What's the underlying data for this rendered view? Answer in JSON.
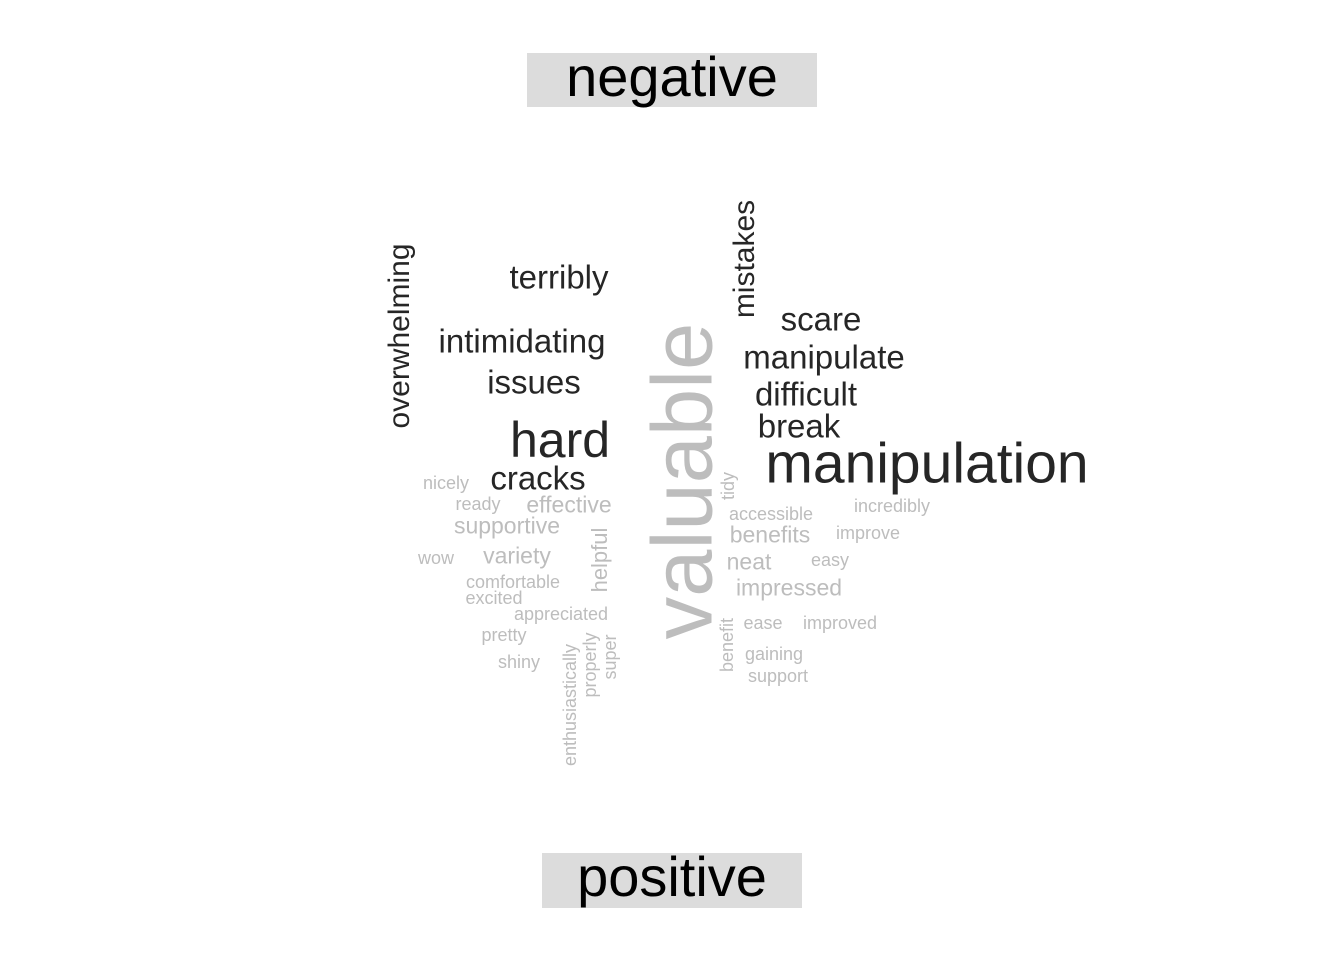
{
  "groups": {
    "negative_label": "negative",
    "positive_label": "positive"
  },
  "colors": {
    "negative": "#262626",
    "positive": "#bdbdbd",
    "label_background": "#dcdcdc"
  },
  "chart_data": {
    "type": "wordcloud",
    "title": "",
    "groups": [
      "negative",
      "positive"
    ],
    "words": [
      {
        "text": "manipulation",
        "sentiment": "negative",
        "weight": 10,
        "rotated": false
      },
      {
        "text": "hard",
        "sentiment": "negative",
        "weight": 9,
        "rotated": false
      },
      {
        "text": "overwhelming",
        "sentiment": "negative",
        "weight": 6,
        "rotated": true
      },
      {
        "text": "mistakes",
        "sentiment": "negative",
        "weight": 6,
        "rotated": true
      },
      {
        "text": "intimidating",
        "sentiment": "negative",
        "weight": 6,
        "rotated": false
      },
      {
        "text": "terribly",
        "sentiment": "negative",
        "weight": 6,
        "rotated": false
      },
      {
        "text": "manipulate",
        "sentiment": "negative",
        "weight": 6,
        "rotated": false
      },
      {
        "text": "difficult",
        "sentiment": "negative",
        "weight": 6,
        "rotated": false
      },
      {
        "text": "break",
        "sentiment": "negative",
        "weight": 6,
        "rotated": false
      },
      {
        "text": "issues",
        "sentiment": "negative",
        "weight": 6,
        "rotated": false
      },
      {
        "text": "cracks",
        "sentiment": "negative",
        "weight": 6,
        "rotated": false
      },
      {
        "text": "scare",
        "sentiment": "negative",
        "weight": 6,
        "rotated": false
      },
      {
        "text": "valuable",
        "sentiment": "positive",
        "weight": 20,
        "rotated": true
      },
      {
        "text": "helpful",
        "sentiment": "positive",
        "weight": 3,
        "rotated": true
      },
      {
        "text": "effective",
        "sentiment": "positive",
        "weight": 3,
        "rotated": false
      },
      {
        "text": "supportive",
        "sentiment": "positive",
        "weight": 3,
        "rotated": false
      },
      {
        "text": "variety",
        "sentiment": "positive",
        "weight": 3,
        "rotated": false
      },
      {
        "text": "benefits",
        "sentiment": "positive",
        "weight": 3,
        "rotated": false
      },
      {
        "text": "neat",
        "sentiment": "positive",
        "weight": 3,
        "rotated": false
      },
      {
        "text": "impressed",
        "sentiment": "positive",
        "weight": 3,
        "rotated": false
      },
      {
        "text": "nicely",
        "sentiment": "positive",
        "weight": 1,
        "rotated": false
      },
      {
        "text": "ready",
        "sentiment": "positive",
        "weight": 1,
        "rotated": false
      },
      {
        "text": "wow",
        "sentiment": "positive",
        "weight": 1,
        "rotated": false
      },
      {
        "text": "comfortable",
        "sentiment": "positive",
        "weight": 1,
        "rotated": false
      },
      {
        "text": "excited",
        "sentiment": "positive",
        "weight": 1,
        "rotated": false
      },
      {
        "text": "appreciated",
        "sentiment": "positive",
        "weight": 1,
        "rotated": false
      },
      {
        "text": "pretty",
        "sentiment": "positive",
        "weight": 1,
        "rotated": false
      },
      {
        "text": "shiny",
        "sentiment": "positive",
        "weight": 1,
        "rotated": false
      },
      {
        "text": "enthusiastically",
        "sentiment": "positive",
        "weight": 1,
        "rotated": true
      },
      {
        "text": "properly",
        "sentiment": "positive",
        "weight": 1,
        "rotated": true
      },
      {
        "text": "super",
        "sentiment": "positive",
        "weight": 1,
        "rotated": true
      },
      {
        "text": "tidy",
        "sentiment": "positive",
        "weight": 1,
        "rotated": true
      },
      {
        "text": "accessible",
        "sentiment": "positive",
        "weight": 1,
        "rotated": false
      },
      {
        "text": "incredibly",
        "sentiment": "positive",
        "weight": 1,
        "rotated": false
      },
      {
        "text": "improve",
        "sentiment": "positive",
        "weight": 1,
        "rotated": false
      },
      {
        "text": "easy",
        "sentiment": "positive",
        "weight": 1,
        "rotated": false
      },
      {
        "text": "benefit",
        "sentiment": "positive",
        "weight": 1,
        "rotated": true
      },
      {
        "text": "ease",
        "sentiment": "positive",
        "weight": 1,
        "rotated": false
      },
      {
        "text": "improved",
        "sentiment": "positive",
        "weight": 1,
        "rotated": false
      },
      {
        "text": "gaining",
        "sentiment": "positive",
        "weight": 1,
        "rotated": false
      },
      {
        "text": "support",
        "sentiment": "positive",
        "weight": 1,
        "rotated": false
      }
    ]
  }
}
